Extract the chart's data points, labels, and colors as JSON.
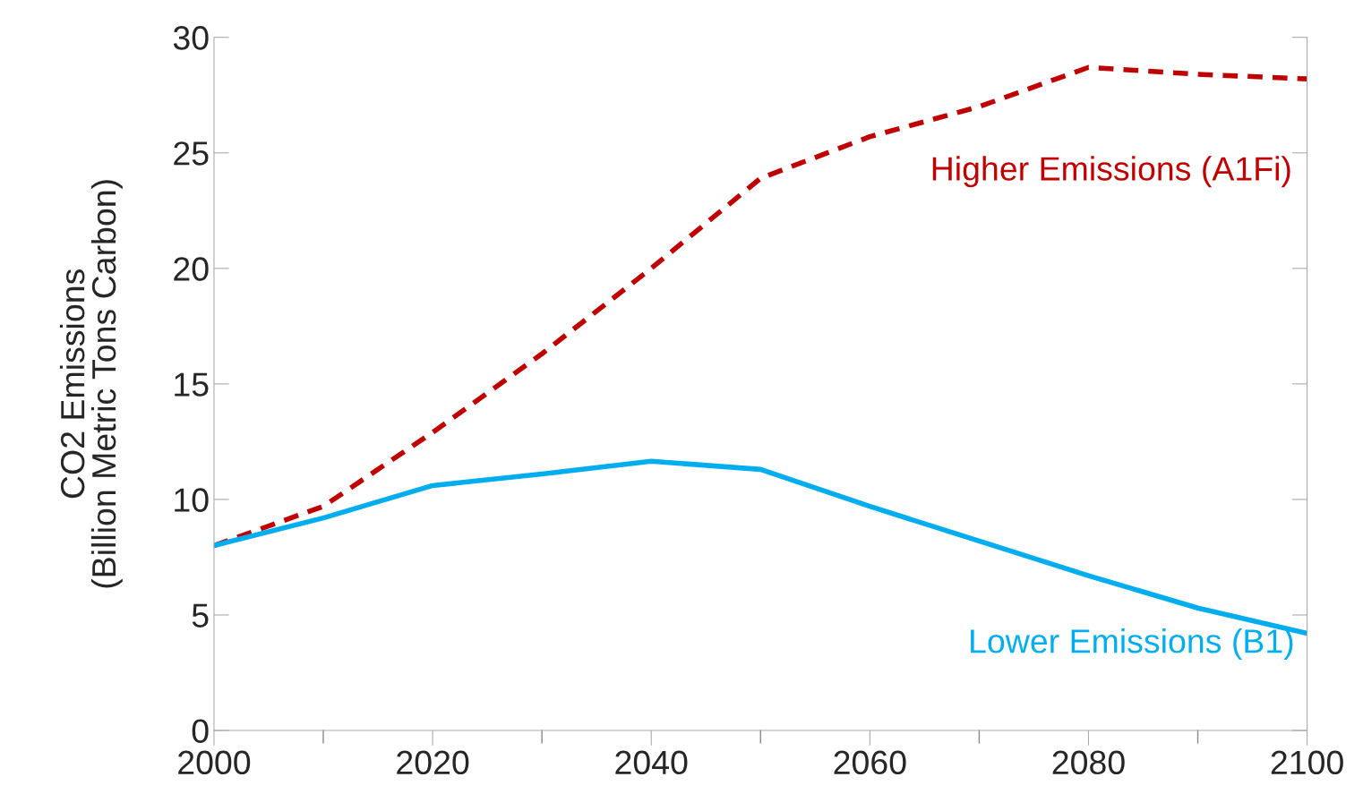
{
  "chart_data": {
    "type": "line",
    "ylabel": "CO2 Emissions\n(Billion Metric Tons Carbon)",
    "x": [
      2000,
      2010,
      2020,
      2030,
      2040,
      2050,
      2060,
      2070,
      2080,
      2090,
      2100
    ],
    "series": [
      {
        "name": "Higher Emissions (A1Fi)",
        "color": "#c00000",
        "line_style": "dashed",
        "values": [
          8.0,
          9.7,
          12.9,
          16.3,
          20.0,
          23.9,
          25.7,
          27.0,
          28.7,
          28.4,
          28.2
        ]
      },
      {
        "name": "Lower Emissions (B1)",
        "color": "#00aeef",
        "line_style": "solid",
        "values": [
          8.0,
          9.2,
          10.6,
          11.1,
          11.65,
          11.3,
          9.7,
          8.2,
          6.7,
          5.3,
          4.2
        ]
      }
    ],
    "xlim": [
      2000,
      2100
    ],
    "xticks": [
      2000,
      {
        "value": 2010,
        "label": null
      },
      2020,
      {
        "value": 2030,
        "label": null
      },
      2040,
      {
        "value": 2050,
        "label": null
      },
      2060,
      {
        "value": 2070,
        "label": null
      },
      2080,
      {
        "value": 2090,
        "label": null
      },
      2100
    ],
    "ylim": [
      0,
      30
    ],
    "yticks": [
      0,
      5,
      10,
      15,
      20,
      25,
      30
    ],
    "grid": false,
    "legend": false
  }
}
